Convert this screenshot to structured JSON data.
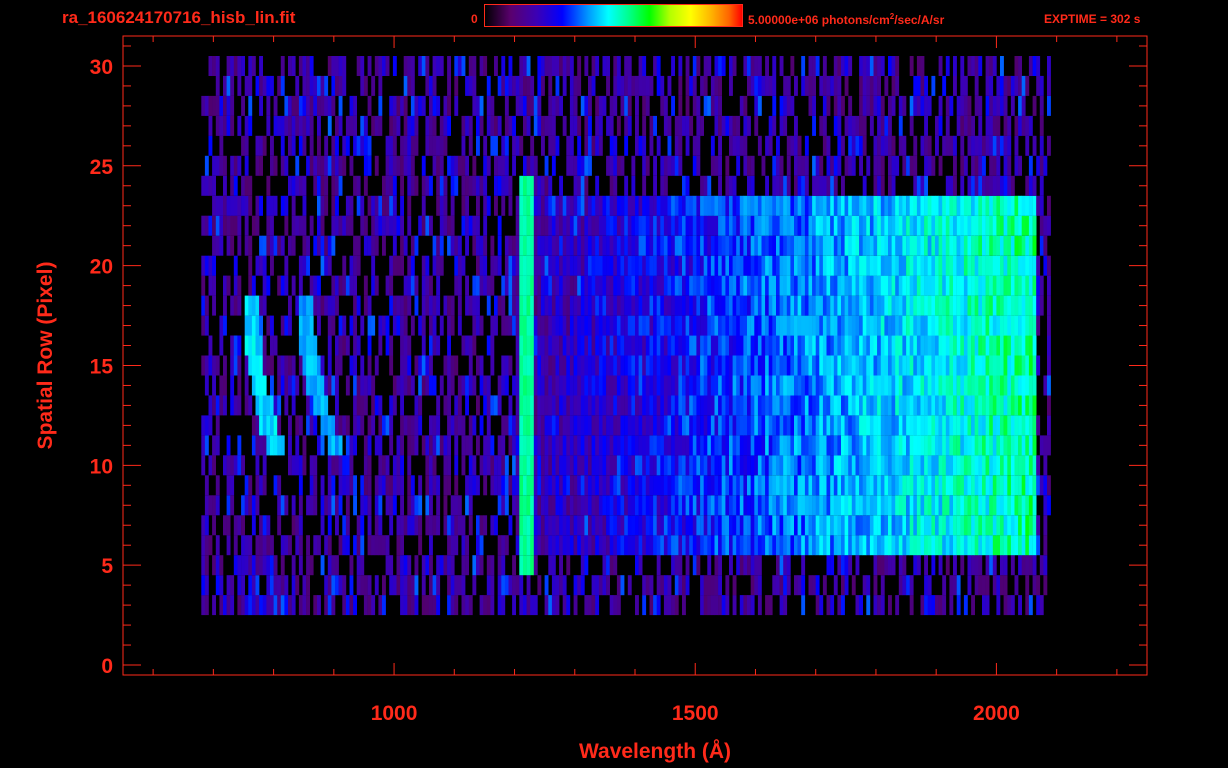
{
  "header": {
    "title": "ra_160624170716_hisb_lin.fit",
    "colorbar_min": "0",
    "colorbar_max_value": "5.00000e+06 photons/cm",
    "colorbar_max_exp": "2",
    "colorbar_max_tail": "/sec/A/sr",
    "exptime": "EXPTIME = 302 s"
  },
  "chart_data": {
    "type": "heatmap",
    "title": "ra_160624170716_hisb_lin.fit",
    "xlabel": "Wavelength (Å)",
    "ylabel": "Spatial Row (Pixel)",
    "xlim": [
      550,
      2250
    ],
    "ylim": [
      -0.5,
      31.5
    ],
    "xticks": [
      1000,
      1500,
      2000
    ],
    "yticks": [
      0,
      5,
      10,
      15,
      20,
      25,
      30
    ],
    "colorscale": {
      "min": 0,
      "max": 5000000,
      "unit": "photons/cm^2/sec/A/sr",
      "colormap": "rainbow"
    },
    "grid": false,
    "features": [
      {
        "name": "line",
        "x": 1216,
        "rows": [
          5,
          24
        ],
        "level": 0.55
      },
      {
        "name": "arc",
        "x": [
          760,
          800
        ],
        "rows": [
          11,
          18
        ],
        "level": 0.45
      },
      {
        "name": "arc",
        "x": [
          850,
          900
        ],
        "rows": [
          11,
          18
        ],
        "level": 0.4
      },
      {
        "name": "continuum",
        "x": [
          1200,
          2060
        ],
        "rows": [
          6,
          23
        ],
        "level_range": [
          0.15,
          0.55
        ]
      }
    ],
    "data_extent": {
      "x": [
        680,
        2090
      ],
      "rows": [
        0,
        30
      ]
    }
  }
}
